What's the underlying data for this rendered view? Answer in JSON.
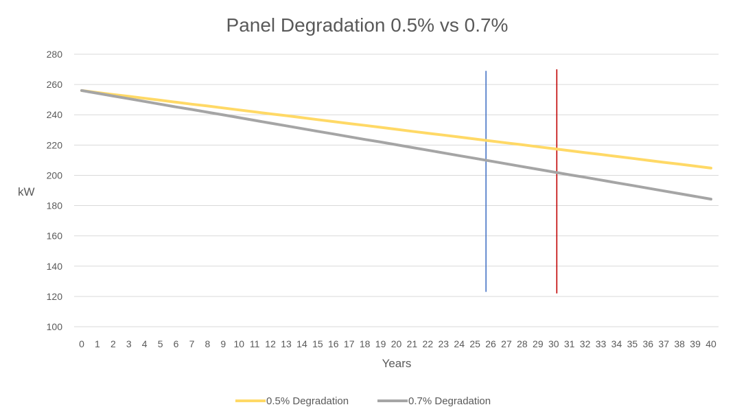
{
  "chart_data": {
    "type": "line",
    "title": "Panel Degradation 0.5% vs 0.7%",
    "xlabel": "Years",
    "ylabel": "kW",
    "ylim": [
      100,
      280
    ],
    "yticks": [
      100,
      120,
      140,
      160,
      180,
      200,
      220,
      240,
      260,
      280
    ],
    "x": [
      0,
      1,
      2,
      3,
      4,
      5,
      6,
      7,
      8,
      9,
      10,
      11,
      12,
      13,
      14,
      15,
      16,
      17,
      18,
      19,
      20,
      21,
      22,
      23,
      24,
      25,
      26,
      27,
      28,
      29,
      30,
      31,
      32,
      33,
      34,
      35,
      36,
      37,
      38,
      39,
      40
    ],
    "grid": true,
    "legend_position": "bottom",
    "series": [
      {
        "name": "0.5% Degradation",
        "color": "#FFD966",
        "values": [
          256,
          254.7,
          253.4,
          252.2,
          250.9,
          249.6,
          248.3,
          247.0,
          245.8,
          244.5,
          243.2,
          241.9,
          240.6,
          239.4,
          238.1,
          236.8,
          235.5,
          234.2,
          233.0,
          231.7,
          230.4,
          229.1,
          227.8,
          226.6,
          225.3,
          224.0,
          222.7,
          221.4,
          220.2,
          218.9,
          217.6,
          216.3,
          215.0,
          213.8,
          212.5,
          211.2,
          209.9,
          208.6,
          207.4,
          206.1,
          204.8
        ]
      },
      {
        "name": "0.7% Degradation",
        "color": "#A5A5A5",
        "values": [
          256,
          254.2,
          252.4,
          250.6,
          248.8,
          247.0,
          245.2,
          243.5,
          241.7,
          239.9,
          238.1,
          236.3,
          234.5,
          232.7,
          230.9,
          229.1,
          227.3,
          225.5,
          223.7,
          222.0,
          220.2,
          218.4,
          216.6,
          214.8,
          213.0,
          211.2,
          209.4,
          207.6,
          205.8,
          204.0,
          202.2,
          200.4,
          198.7,
          196.9,
          195.1,
          193.3,
          191.5,
          189.7,
          187.9,
          186.1,
          184.3
        ]
      }
    ],
    "annotations": [
      {
        "type": "vertical-line",
        "x": 25.7,
        "y_range": [
          123,
          269
        ],
        "color": "#4472C4"
      },
      {
        "type": "vertical-line",
        "x": 30.2,
        "y_range": [
          122,
          270
        ],
        "color": "#C00000"
      }
    ]
  }
}
